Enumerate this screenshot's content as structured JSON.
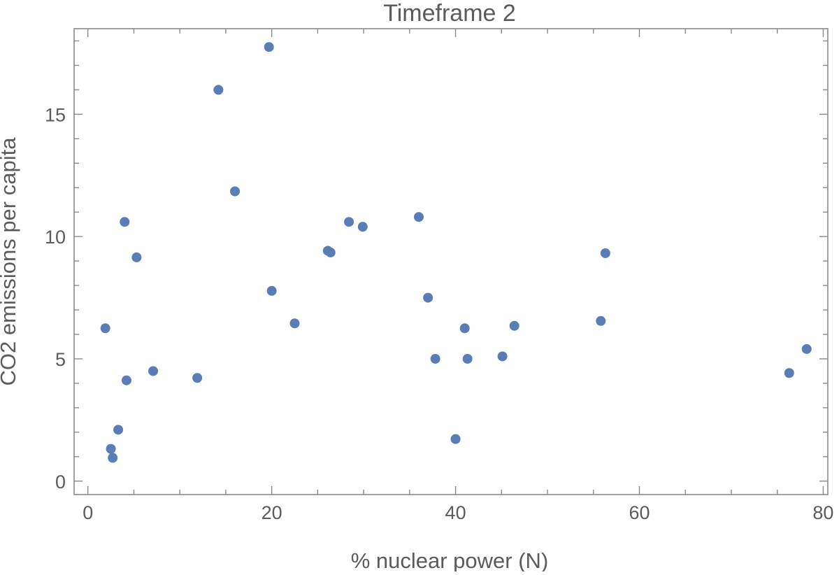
{
  "chart_data": {
    "type": "scatter",
    "title": "Timeframe 2",
    "xlabel": "% nuclear power (N)",
    "ylabel": "CO2 emissions per capita",
    "xlim": [
      -1.5,
      80.5
    ],
    "ylim": [
      -0.55,
      18.5
    ],
    "x_ticks": [
      0,
      20,
      40,
      60,
      80
    ],
    "y_ticks": [
      0,
      5,
      10,
      15
    ],
    "x_minor_step": 5,
    "y_minor_step": 1,
    "grid": false,
    "marker_color": "#5a7db5",
    "points": [
      {
        "x": 1.9,
        "y": 6.25
      },
      {
        "x": 2.5,
        "y": 1.32
      },
      {
        "x": 2.7,
        "y": 0.95
      },
      {
        "x": 3.3,
        "y": 2.1
      },
      {
        "x": 4.0,
        "y": 10.6
      },
      {
        "x": 4.2,
        "y": 4.12
      },
      {
        "x": 5.3,
        "y": 9.15
      },
      {
        "x": 7.1,
        "y": 4.5
      },
      {
        "x": 11.9,
        "y": 4.22
      },
      {
        "x": 14.2,
        "y": 16.0
      },
      {
        "x": 16.0,
        "y": 11.85
      },
      {
        "x": 19.7,
        "y": 17.75
      },
      {
        "x": 20.0,
        "y": 7.78
      },
      {
        "x": 22.5,
        "y": 6.45
      },
      {
        "x": 26.1,
        "y": 9.42
      },
      {
        "x": 26.4,
        "y": 9.35
      },
      {
        "x": 28.4,
        "y": 10.6
      },
      {
        "x": 29.9,
        "y": 10.4
      },
      {
        "x": 36.0,
        "y": 10.8
      },
      {
        "x": 37.0,
        "y": 7.5
      },
      {
        "x": 37.8,
        "y": 5.0
      },
      {
        "x": 40.0,
        "y": 1.72
      },
      {
        "x": 41.0,
        "y": 6.25
      },
      {
        "x": 41.3,
        "y": 5.0
      },
      {
        "x": 45.1,
        "y": 5.1
      },
      {
        "x": 46.4,
        "y": 6.35
      },
      {
        "x": 55.8,
        "y": 6.55
      },
      {
        "x": 56.3,
        "y": 9.32
      },
      {
        "x": 76.3,
        "y": 4.42
      },
      {
        "x": 78.2,
        "y": 5.4
      }
    ]
  }
}
